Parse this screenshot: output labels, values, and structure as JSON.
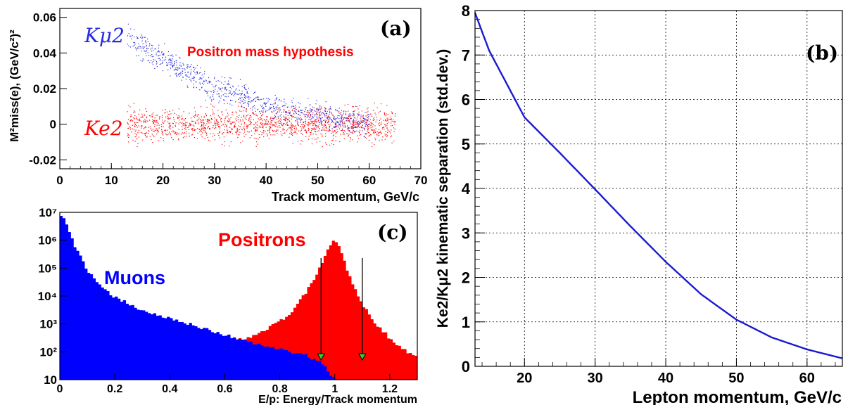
{
  "chart_data": [
    {
      "panel": "(a)",
      "type": "scatter",
      "xlabel": "Track momentum, GeV/c",
      "ylabel": "M²miss(e), (GeV/c²)²",
      "xlim": [
        0,
        70
      ],
      "ylim": [
        -0.025,
        0.065
      ],
      "xticks": [
        "0",
        "10",
        "20",
        "30",
        "40",
        "50",
        "60",
        "70"
      ],
      "yticks": [
        "-0.02",
        "0",
        "0.02",
        "0.04",
        "0.06"
      ],
      "annotation": "Positron mass hypothesis",
      "series": [
        {
          "name": "Kμ2",
          "color": "#2a2ae0",
          "x": [
            13,
            15,
            20,
            25,
            30,
            35,
            40,
            45,
            50,
            55,
            60
          ],
          "y": [
            0.052,
            0.046,
            0.036,
            0.028,
            0.021,
            0.016,
            0.011,
            0.008,
            0.005,
            0.003,
            0.001
          ]
        },
        {
          "name": "Ke2",
          "color": "#ff0000",
          "x": [
            13,
            20,
            30,
            40,
            50,
            60,
            65
          ],
          "y": [
            0,
            0,
            0,
            0,
            0,
            0,
            0
          ],
          "spread": 0.013
        }
      ]
    },
    {
      "panel": "(b)",
      "type": "line",
      "xlabel": "Lepton momentum, GeV/c",
      "ylabel": "Ke2/Kμ2 kinematic separation (std.dev.)",
      "xlim": [
        13,
        65
      ],
      "ylim": [
        0,
        8
      ],
      "xticks": [
        "20",
        "30",
        "40",
        "50",
        "60"
      ],
      "yticks": [
        "0",
        "1",
        "2",
        "3",
        "4",
        "5",
        "6",
        "7",
        "8"
      ],
      "grid": true,
      "series": [
        {
          "name": "",
          "color": "#1a1ad0",
          "x": [
            13,
            15,
            20,
            25,
            30,
            35,
            40,
            45,
            50,
            55,
            60,
            65
          ],
          "y": [
            7.95,
            7.1,
            5.6,
            4.8,
            3.98,
            3.15,
            2.35,
            1.62,
            1.05,
            0.65,
            0.38,
            0.18
          ]
        }
      ]
    },
    {
      "panel": "(c)",
      "type": "area",
      "xlabel": "E/p: Energy/Track momentum",
      "ylabel": "",
      "xlim": [
        0,
        1.3
      ],
      "ylim_log": [
        10,
        10000000
      ],
      "log_y": true,
      "xticks": [
        "0",
        "0.2",
        "0.4",
        "0.6",
        "0.8",
        "1",
        "1.2"
      ],
      "yticks": [
        "10",
        "10²",
        "10³",
        "10⁴",
        "10⁵",
        "10⁶",
        "10⁷"
      ],
      "cut_arrows_x": [
        0.95,
        1.1
      ],
      "series": [
        {
          "name": "Muons",
          "color": "#0000ff",
          "x": [
            0,
            0.02,
            0.05,
            0.1,
            0.15,
            0.2,
            0.3,
            0.4,
            0.5,
            0.6,
            0.7,
            0.8,
            0.9,
            0.95,
            1.0
          ],
          "y": [
            10000000,
            5000000,
            800000,
            80000,
            20000,
            9000,
            3000,
            1500,
            800,
            400,
            200,
            120,
            70,
            40,
            10
          ]
        },
        {
          "name": "Positrons",
          "color": "#ff0000",
          "x": [
            0.6,
            0.7,
            0.8,
            0.85,
            0.9,
            0.95,
            0.98,
            1.0,
            1.02,
            1.05,
            1.1,
            1.15,
            1.2,
            1.25,
            1.3
          ],
          "y": [
            200,
            350,
            1200,
            3000,
            15000,
            120000,
            600000,
            1000000,
            500000,
            60000,
            5000,
            1000,
            300,
            120,
            60
          ]
        }
      ]
    }
  ],
  "labels": {
    "a_kmu2": "Kμ2",
    "a_ke2": "Ke2"
  }
}
